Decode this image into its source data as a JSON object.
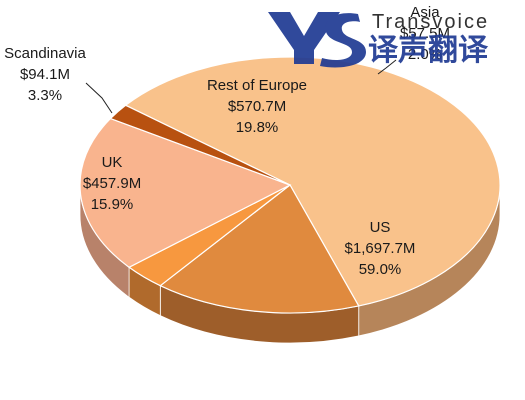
{
  "chart_data": {
    "type": "pie",
    "style": "3d",
    "title": "",
    "slices": [
      {
        "name": "US",
        "value": "$1,697.7M",
        "percent": "59.0%",
        "share": 59.0,
        "color": "#f9c28b",
        "side": "#b6855a"
      },
      {
        "name": "UK",
        "value": "$457.9M",
        "percent": "15.9%",
        "share": 15.9,
        "color": "#e08a3e",
        "side": "#9e5e2a"
      },
      {
        "name": "Scandinavia",
        "value": "$94.1M",
        "percent": "3.3%",
        "share": 3.3,
        "color": "#f7983f",
        "side": "#b06a2c"
      },
      {
        "name": "Rest of Europe",
        "value": "$570.7M",
        "percent": "19.8%",
        "share": 19.8,
        "color": "#f9b48e",
        "side": "#b8826a"
      },
      {
        "name": "Asia",
        "value": "$57.5M",
        "percent": "2.0%",
        "share": 2.0,
        "color": "#b85110",
        "side": "#7a360b"
      }
    ]
  },
  "watermark": {
    "brand_en": "Transvoice",
    "brand_cn": "译声翻译",
    "color": "#1f3a93"
  }
}
